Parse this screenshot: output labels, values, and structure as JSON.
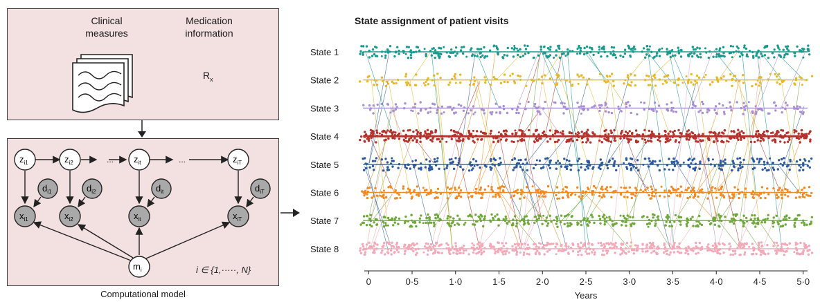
{
  "left_panel": {
    "top_box": {
      "clinical_label": "Clinical\nmeasures",
      "medication_label": "Medication\ninformation",
      "rx_symbol": "R",
      "rx_subscript": "x"
    },
    "model_box": {
      "z_nodes": [
        {
          "base": "z",
          "sub": "i1"
        },
        {
          "base": "z",
          "sub": "i2"
        },
        {
          "base": "z",
          "sub": "it"
        },
        {
          "base": "z",
          "sub": "iT"
        }
      ],
      "d_nodes": [
        {
          "base": "d",
          "sub": "i1"
        },
        {
          "base": "d",
          "sub": "i2"
        },
        {
          "base": "d",
          "sub": "it"
        },
        {
          "base": "d",
          "sub": "iT"
        }
      ],
      "x_nodes": [
        {
          "base": "x",
          "sub": "i1"
        },
        {
          "base": "x",
          "sub": "i2"
        },
        {
          "base": "x",
          "sub": "it"
        },
        {
          "base": "x",
          "sub": "iT"
        }
      ],
      "m_node": {
        "base": "m",
        "sub": "i"
      },
      "ellipsis": "...",
      "index_set": "i ∈ {1,·····, N}"
    },
    "caption": "Computational model"
  },
  "chart_data": {
    "type": "scatter",
    "title": "State assignment of patient visits",
    "xlabel": "Years",
    "ylabel": "",
    "xlim": [
      -0.05,
      5.05
    ],
    "x_ticks": [
      "0",
      "0·5",
      "1·0",
      "1·5",
      "2·0",
      "2·5",
      "3·0",
      "3·5",
      "4·0",
      "4·5",
      "5·0"
    ],
    "x_tick_values": [
      0,
      0.5,
      1.0,
      1.5,
      2.0,
      2.5,
      3.0,
      3.5,
      4.0,
      4.5,
      5.0
    ],
    "categories": [
      "State 1",
      "State 2",
      "State 3",
      "State 4",
      "State 5",
      "State 6",
      "State 7",
      "State 8"
    ],
    "colors": [
      "#1a9a8e",
      "#e8b82a",
      "#a98fd2",
      "#b5322d",
      "#2d5a9e",
      "#f08a24",
      "#6fa83b",
      "#f3a9b8"
    ],
    "visit_interval_years": 0.25,
    "grid": false,
    "legend": "none"
  }
}
